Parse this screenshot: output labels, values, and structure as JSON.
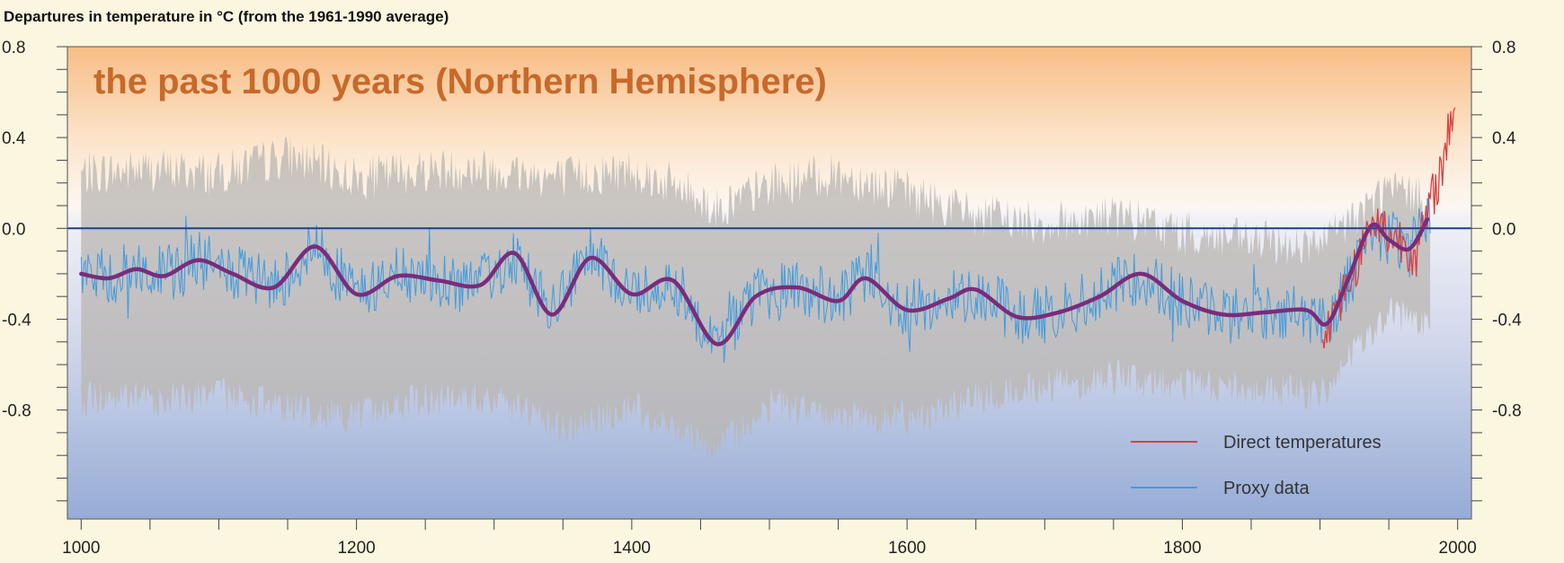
{
  "chart_data": {
    "type": "line",
    "title": "Departures in temperature in °C (from the 1961-1990 average)",
    "subtitle": "the past 1000 years (Northern Hemisphere)",
    "xlabel": "",
    "ylabel": "",
    "xlim": [
      990,
      2010
    ],
    "ylim": [
      -1.28,
      0.8
    ],
    "x_ticks": [
      1000,
      1200,
      1400,
      1600,
      1800,
      2000
    ],
    "y_ticks": [
      0.8,
      0.4,
      0.0,
      -0.4,
      -0.8
    ],
    "y_tick_labels": [
      "0.8",
      "0.4",
      "0.0",
      "-0.4",
      "-0.8"
    ],
    "reference_line": 0.0,
    "grid": false,
    "legend": {
      "placement": "bottom-right",
      "entries": [
        "Direct temperatures",
        "Proxy data"
      ]
    },
    "colors": {
      "direct": "#d94040",
      "proxy": "#3f9be0",
      "smooth": "#7a2c7a",
      "band": "#b9b5b2",
      "zero_line": "#1d3f8a",
      "title": "#c8692a"
    },
    "series": [
      {
        "name": "Proxy data",
        "smoothed": {
          "x": [
            1000,
            1020,
            1040,
            1060,
            1085,
            1110,
            1140,
            1170,
            1200,
            1230,
            1260,
            1290,
            1315,
            1342,
            1370,
            1400,
            1430,
            1462,
            1490,
            1520,
            1550,
            1570,
            1600,
            1630,
            1650,
            1680,
            1710,
            1740,
            1770,
            1800,
            1830,
            1860,
            1890,
            1905,
            1920,
            1937,
            1950,
            1965,
            1978
          ],
          "y": [
            -0.2,
            -0.22,
            -0.18,
            -0.21,
            -0.14,
            -0.2,
            -0.26,
            -0.08,
            -0.29,
            -0.21,
            -0.23,
            -0.25,
            -0.11,
            -0.38,
            -0.13,
            -0.29,
            -0.23,
            -0.51,
            -0.3,
            -0.26,
            -0.32,
            -0.22,
            -0.36,
            -0.31,
            -0.27,
            -0.39,
            -0.37,
            -0.3,
            -0.2,
            -0.32,
            -0.38,
            -0.37,
            -0.36,
            -0.42,
            -0.23,
            0.01,
            -0.05,
            -0.09,
            0.04
          ]
        },
        "band": {
          "x": [
            1000,
            1050,
            1100,
            1150,
            1200,
            1250,
            1300,
            1350,
            1400,
            1450,
            1460,
            1500,
            1550,
            1600,
            1650,
            1700,
            1750,
            1800,
            1850,
            1900,
            1950,
            1980
          ],
          "upper": [
            0.2,
            0.22,
            0.2,
            0.28,
            0.18,
            0.22,
            0.22,
            0.18,
            0.22,
            0.1,
            0.04,
            0.15,
            0.2,
            0.12,
            0.02,
            -0.02,
            0.02,
            -0.06,
            -0.1,
            -0.12,
            0.14,
            0.08
          ],
          "lower": [
            -0.72,
            -0.72,
            -0.7,
            -0.76,
            -0.8,
            -0.72,
            -0.72,
            -0.86,
            -0.76,
            -0.88,
            -0.96,
            -0.74,
            -0.8,
            -0.8,
            -0.72,
            -0.66,
            -0.62,
            -0.66,
            -0.68,
            -0.7,
            -0.34,
            -0.4
          ]
        }
      },
      {
        "name": "Direct temperatures",
        "x": [
          1902,
          1910,
          1920,
          1930,
          1940,
          1950,
          1960,
          1970,
          1980,
          1990,
          1998
        ],
        "y": [
          -0.45,
          -0.36,
          -0.25,
          -0.1,
          0.05,
          -0.03,
          -0.05,
          -0.12,
          0.1,
          0.3,
          0.58
        ]
      }
    ]
  }
}
